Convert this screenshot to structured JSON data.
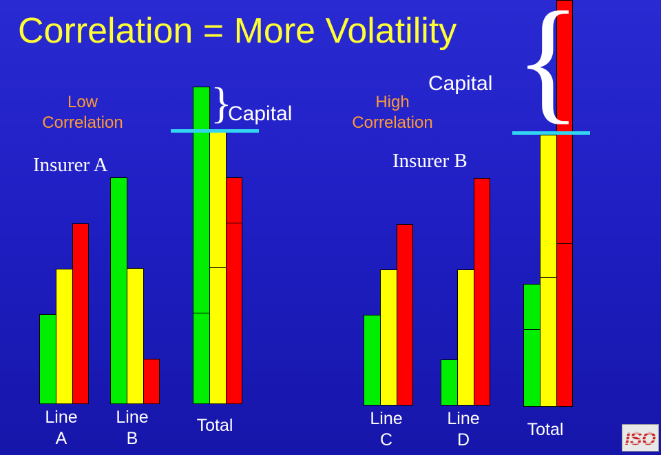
{
  "title": "Correlation = More Volatility",
  "low_correlation": {
    "line1": "Low",
    "line2": "Correlation"
  },
  "high_correlation": {
    "line1": "High",
    "line2": "Correlation"
  },
  "insurer_a": "Insurer A",
  "insurer_b": "Insurer B",
  "capital_label": "Capital",
  "lines": {
    "a": {
      "line1": "Line",
      "line2": "A"
    },
    "b": {
      "line1": "Line",
      "line2": "B"
    },
    "c": {
      "line1": "Line",
      "line2": "C"
    },
    "d": {
      "line1": "Line",
      "line2": "D"
    }
  },
  "total_label": "Total",
  "logo_text": "ISO",
  "colors": {
    "background": "#1f1fc4",
    "title": "#ffff33",
    "correlation_label": "#ff9933",
    "green": "#00ee00",
    "yellow": "#ffff00",
    "red": "#ff0000",
    "capital_line": "#33d6f0",
    "logo_red": "#cc2222"
  }
}
